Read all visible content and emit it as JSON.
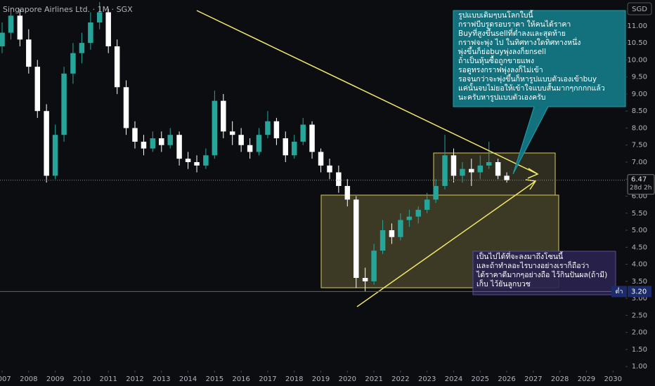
{
  "chart_data": {
    "type": "candlestick",
    "title": "Singapore Airlines Ltd. · 1M · SGX",
    "currency": "SGD",
    "up_color": "#26a69a",
    "down_color": "#ffffff",
    "grid": false,
    "x": [
      2007,
      2007.33,
      2007.67,
      2008,
      2008.33,
      2008.67,
      2009,
      2009.33,
      2009.67,
      2010,
      2010.33,
      2010.67,
      2011,
      2011.33,
      2011.67,
      2012,
      2012.33,
      2012.67,
      2013,
      2013.33,
      2013.67,
      2014,
      2014.33,
      2014.67,
      2015,
      2015.33,
      2015.67,
      2016,
      2016.33,
      2016.67,
      2017,
      2017.33,
      2017.67,
      2018,
      2018.33,
      2018.67,
      2019,
      2019.33,
      2019.67,
      2020,
      2020.33,
      2020.67,
      2021,
      2021.33,
      2021.67,
      2022,
      2022.33,
      2022.67,
      2023,
      2023.33,
      2023.67,
      2024,
      2024.33,
      2024.67,
      2025,
      2025.33,
      2025.67,
      2026
    ],
    "open": [
      10.4,
      10.8,
      11.3,
      10.6,
      9.8,
      8.5,
      6.6,
      7.8,
      9.6,
      10.2,
      10.5,
      11.1,
      11.4,
      10.4,
      9.2,
      8.0,
      7.6,
      7.4,
      7.7,
      7.5,
      7.8,
      7.1,
      7.0,
      6.9,
      7.2,
      8.8,
      7.9,
      7.8,
      7.5,
      7.3,
      7.8,
      8.2,
      7.7,
      7.2,
      7.6,
      8.1,
      7.3,
      6.9,
      6.7,
      6.3,
      5.9,
      3.6,
      3.5,
      4.4,
      5.0,
      4.8,
      5.3,
      5.4,
      5.6,
      5.9,
      6.3,
      7.2,
      6.6,
      6.8,
      6.7,
      6.9,
      7.0,
      6.6
    ],
    "high": [
      11.1,
      11.5,
      11.5,
      10.9,
      10.0,
      8.7,
      8.1,
      9.8,
      10.5,
      10.8,
      11.4,
      11.7,
      11.5,
      10.6,
      9.4,
      8.2,
      7.8,
      7.9,
      7.9,
      8.0,
      7.9,
      7.3,
      7.2,
      7.4,
      9.1,
      9.0,
      8.2,
      8.0,
      7.7,
      8.0,
      8.5,
      8.3,
      7.9,
      7.8,
      8.3,
      8.2,
      7.4,
      7.1,
      6.9,
      6.5,
      6.0,
      3.9,
      4.6,
      5.3,
      5.2,
      5.5,
      5.6,
      5.7,
      6.1,
      6.5,
      7.8,
      7.4,
      7.0,
      7.1,
      7.2,
      7.6,
      7.1,
      6.7
    ],
    "low": [
      10.2,
      10.6,
      10.4,
      9.6,
      8.3,
      6.4,
      6.5,
      7.6,
      9.3,
      9.9,
      10.3,
      10.9,
      10.2,
      9.0,
      7.8,
      7.4,
      7.2,
      7.3,
      7.3,
      7.4,
      6.9,
      6.8,
      6.7,
      6.8,
      7.1,
      7.7,
      7.5,
      7.3,
      7.1,
      7.2,
      7.7,
      7.5,
      7.0,
      7.1,
      7.5,
      7.1,
      6.7,
      6.5,
      6.1,
      5.7,
      3.3,
      3.2,
      3.4,
      4.3,
      4.6,
      4.7,
      5.1,
      5.2,
      5.5,
      5.8,
      6.2,
      6.4,
      6.4,
      6.3,
      6.5,
      6.8,
      6.5,
      6.4
    ],
    "close": [
      10.8,
      11.3,
      10.6,
      9.8,
      8.5,
      6.6,
      7.8,
      9.6,
      10.2,
      10.5,
      11.1,
      11.4,
      10.4,
      9.2,
      8.0,
      7.6,
      7.4,
      7.7,
      7.5,
      7.8,
      7.1,
      7.0,
      6.9,
      7.2,
      8.8,
      7.9,
      7.8,
      7.5,
      7.3,
      7.8,
      8.2,
      7.7,
      7.2,
      7.6,
      8.1,
      7.3,
      6.9,
      6.7,
      6.3,
      5.9,
      3.6,
      3.5,
      4.4,
      5.0,
      4.8,
      5.3,
      5.4,
      5.6,
      5.9,
      6.3,
      7.2,
      6.6,
      6.8,
      6.7,
      6.9,
      7.0,
      6.6,
      6.47
    ],
    "xlim": [
      2006.92,
      2030.47
    ],
    "ylim": [
      0.88,
      11.76
    ],
    "xticks": [
      2007,
      2008,
      2009,
      2010,
      2011,
      2012,
      2013,
      2014,
      2015,
      2016,
      2017,
      2018,
      2019,
      2020,
      2021,
      2022,
      2023,
      2024,
      2025,
      2026,
      2027,
      2028,
      2029,
      2030
    ],
    "yticks": [
      {
        "value": 1,
        "label": "1.00"
      },
      {
        "value": 1.5,
        "label": "1.50"
      },
      {
        "value": 2,
        "label": "2.00"
      },
      {
        "value": 2.5,
        "label": "2.50"
      },
      {
        "value": 3,
        "label": "3.00"
      },
      {
        "value": 3.5,
        "label": "3.50"
      },
      {
        "value": 4,
        "label": "4.00"
      },
      {
        "value": 4.5,
        "label": "4.50"
      },
      {
        "value": 5,
        "label": "5.00"
      },
      {
        "value": 5.5,
        "label": "5.50"
      },
      {
        "value": 6,
        "label": "6.00"
      },
      {
        "value": 6.5,
        "label": "6.50"
      },
      {
        "value": 7,
        "label": "7.00"
      },
      {
        "value": 7.5,
        "label": "7.50"
      },
      {
        "value": 8,
        "label": "8.00"
      },
      {
        "value": 8.5,
        "label": "8.50"
      },
      {
        "value": 9,
        "label": "9.00"
      },
      {
        "value": 9.5,
        "label": "9.50"
      },
      {
        "value": 10,
        "label": "10.00"
      },
      {
        "value": 10.5,
        "label": "10.50"
      },
      {
        "value": 11,
        "label": "11.00"
      }
    ],
    "last_price": 6.47,
    "countdown": "28d 2h",
    "low_price": {
      "value": 3.2,
      "label": "3.20"
    },
    "low_label": "ต่ำ",
    "annotations": [
      {
        "lines": [
          "รูปแบบเดิมๆบนโลกใบนี้",
          "กราฟบีบรูดรอบราคา ให้คนได้ราคา",
          "Buyที่สูงขึ้นsellที่ต่ำลงและสุดท้าย",
          "กราฟจะพุ่ง ไป ในทิศทางใดทิศทางหนึ่ง",
          "พุ่งขึ้นก็ย่อbuyพุ่งลงก็ยกsell",
          "ถ้าเป็นหุ้นซื้อถูกขายแพง",
          "รอดูทรงกราฟพุ่งลงก็ไม่เข้า",
          "รอจนกว่าจะพุ่งขึ้นก็หารูปแบบตัวเองเข้าbuy",
          "แค่นั้นจบไม่ยอให้เข้าใจแบบสั้นมากๆกกกกแล้ว",
          "นะครับหารูปแบบตัวเองครับ"
        ]
      },
      {
        "lines": [
          "เป็นไปได้ที่จะลงมาถึงโซนนี้",
          "และถ้าทำลอะไรบางอย่างเราก็ถือว่า",
          "ได้ราคาดีมากๆอย่างถือ ไว้กินปันผล(ถ้ามี)",
          "เก็บ ไว้ยันลูกบวช"
        ]
      }
    ]
  }
}
